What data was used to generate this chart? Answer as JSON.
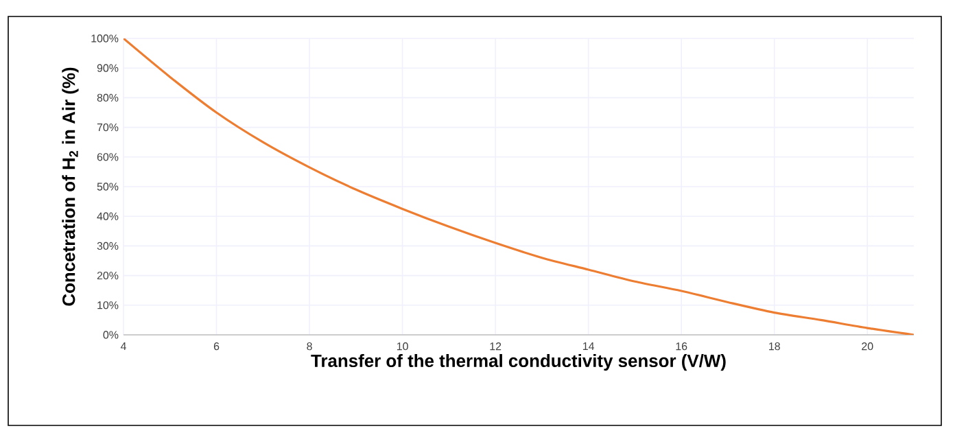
{
  "chart_data": {
    "type": "line",
    "xlabel": "Transfer of the thermal conductivity sensor (V/W)",
    "ylabel": "Concetration of H$_{2}$ in Air (%)",
    "x": [
      4,
      5,
      6,
      7,
      8,
      9,
      10,
      11,
      12,
      13,
      14,
      15,
      16,
      17,
      18,
      19,
      20,
      21
    ],
    "series": [
      {
        "color": "#ed7d31",
        "values": [
          100,
          87,
          75,
          65,
          56.5,
          49,
          42.5,
          36.5,
          31,
          26,
          22,
          18,
          14.8,
          11,
          7.5,
          5,
          2.3,
          0
        ]
      }
    ],
    "xlim": [
      4,
      21
    ],
    "ylim": [
      0,
      100
    ],
    "xticks": [
      4,
      6,
      8,
      10,
      12,
      14,
      16,
      18,
      20
    ],
    "yticks": [
      {
        "value": 0,
        "label": "0%"
      },
      {
        "value": 10,
        "label": "10%"
      },
      {
        "value": 20,
        "label": "20%"
      },
      {
        "value": 30,
        "label": "30%"
      },
      {
        "value": 40,
        "label": "40%"
      },
      {
        "value": 50,
        "label": "50%"
      },
      {
        "value": 60,
        "label": "60%"
      },
      {
        "value": 70,
        "label": "70%"
      },
      {
        "value": 80,
        "label": "80%"
      },
      {
        "value": 90,
        "label": "90%"
      },
      {
        "value": 100,
        "label": "100%"
      }
    ],
    "grid": true,
    "marker": "none",
    "line_style": "solid"
  }
}
